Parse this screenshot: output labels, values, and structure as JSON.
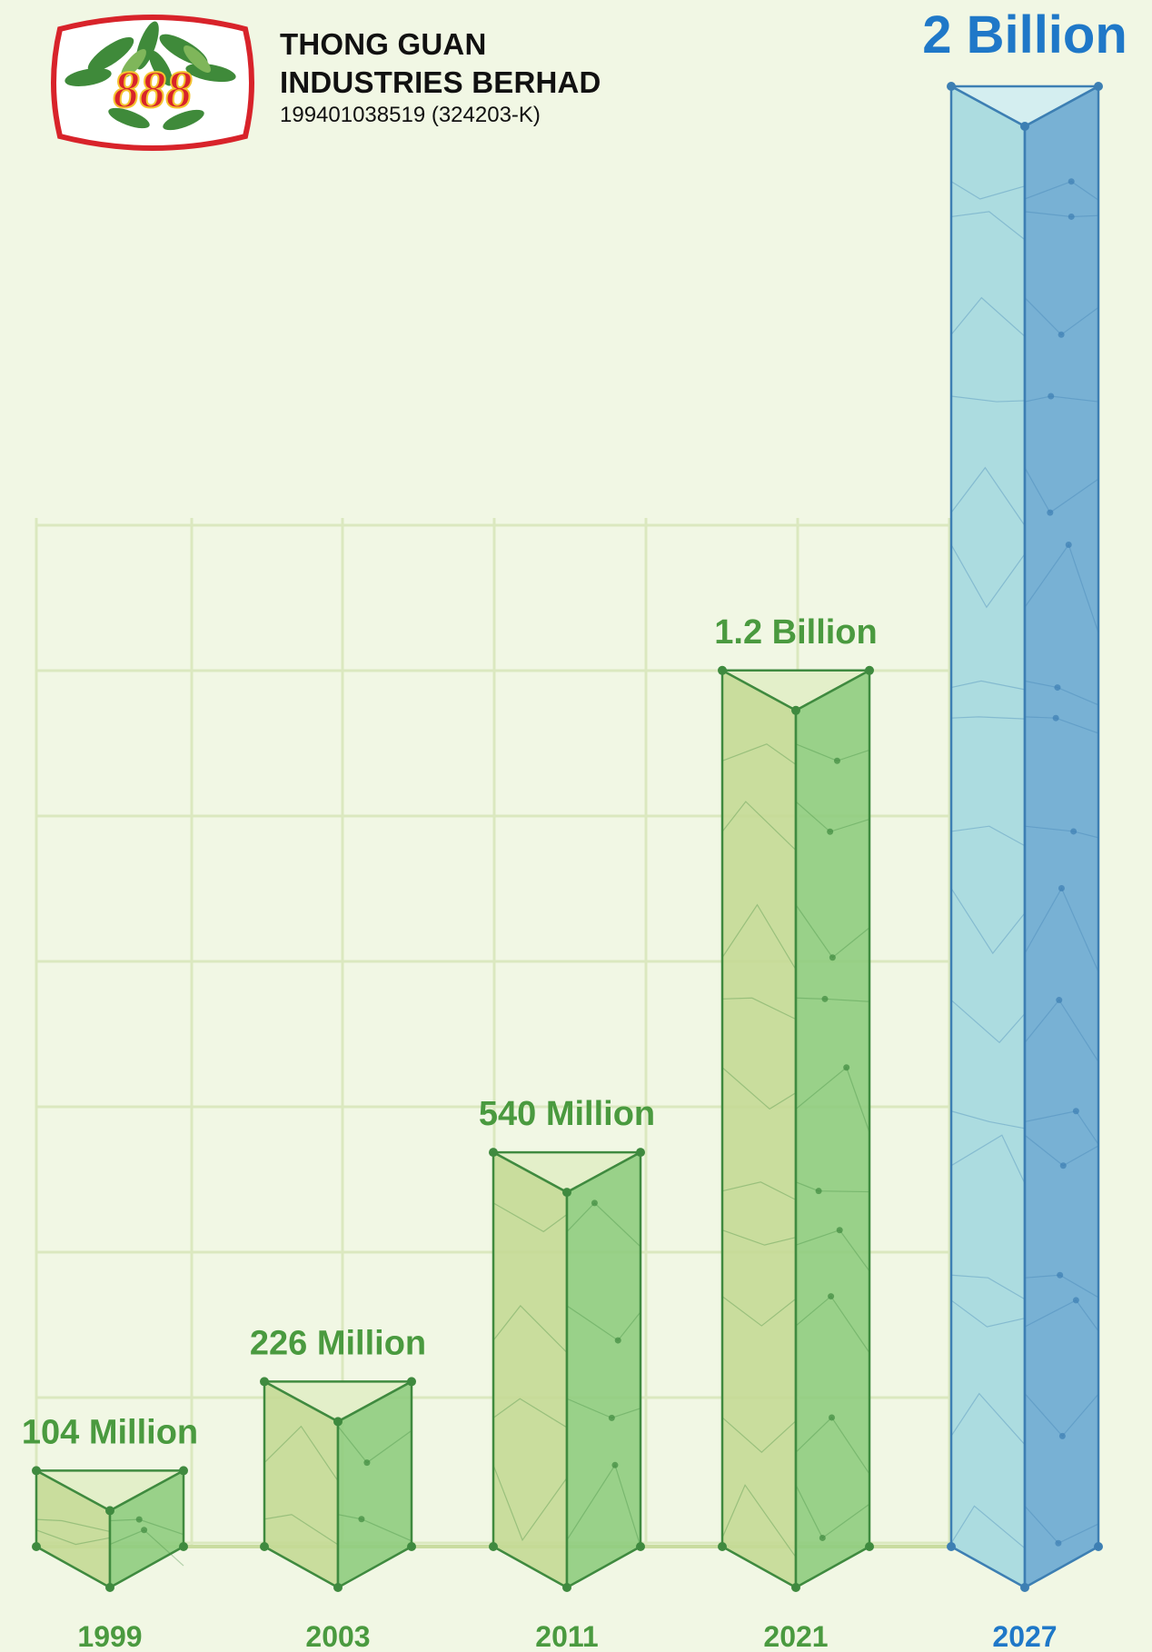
{
  "company": {
    "logo_text": "888",
    "name_line1": "THONG GUAN",
    "name_line2": "INDUSTRIES BERHAD",
    "registration": "199401038519 (324203-K)"
  },
  "colors": {
    "background": "#f1f7e4",
    "grid": "#dbe8bf",
    "green_left": "#c4d995",
    "green_right": "#8fcc7e",
    "green_edge": "#3f8a3f",
    "green_label": "#4a9a3f",
    "blue_left": "#a4d8df",
    "blue_right": "#6aa8d2",
    "blue_edge": "#3d7fb3",
    "blue_label": "#1f78c8",
    "logo_red": "#d8232a"
  },
  "chart_data": {
    "type": "bar",
    "categories": [
      "1999",
      "2003",
      "2011",
      "2021",
      "2027"
    ],
    "values": [
      104000000,
      226000000,
      540000000,
      1200000000,
      2000000000
    ],
    "data_labels": [
      "104 Million",
      "226 Million",
      "540 Million",
      "1.2 Billion",
      "2 Billion"
    ],
    "title": "",
    "xlabel": "",
    "ylabel": "",
    "ylim": [
      0,
      2000000000
    ],
    "grid": true,
    "legend": "none"
  }
}
